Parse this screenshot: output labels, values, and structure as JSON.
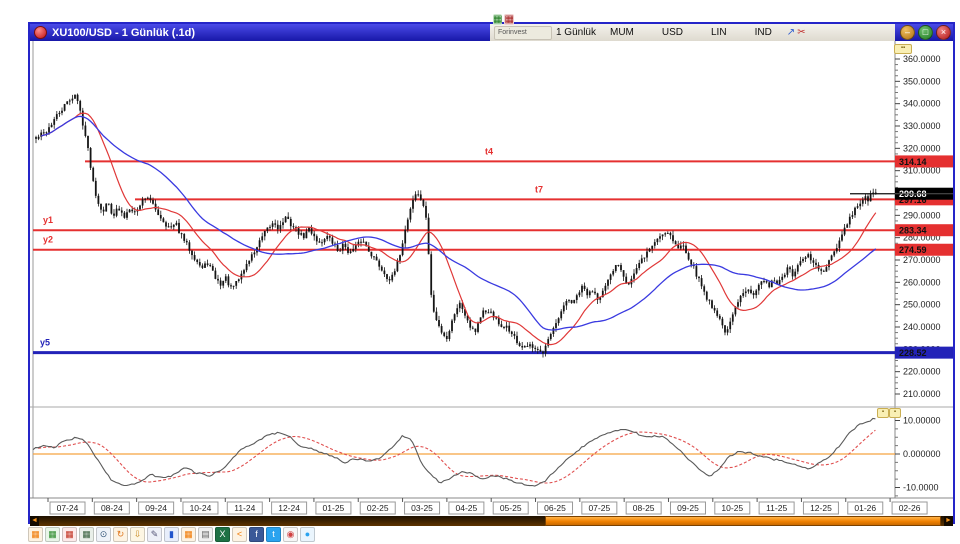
{
  "window": {
    "title": "XU100/USD - 1 Günlük (.1d)",
    "controls": {
      "minimize": "–",
      "restore": "□",
      "close": "×"
    }
  },
  "toolbar": {
    "forinvest_label": "Forinvest",
    "period_label": "1 Günlük",
    "buttons": [
      "MUM",
      "USD",
      "LIN",
      "IND"
    ]
  },
  "chart_data": {
    "type": "candlestick",
    "symbol": "XU100/USD",
    "period": "1 Günlük (.1d)",
    "ylim": [
      210,
      360
    ],
    "y_axis_ticks": [
      "360.0000",
      "350.0000",
      "340.0000",
      "330.0000",
      "320.0000",
      "310.0000",
      "300.0000",
      "290.0000",
      "280.0000",
      "270.0000",
      "260.0000",
      "250.0000",
      "240.0000",
      "230.0000",
      "220.0000",
      "210.0000"
    ],
    "x_axis_months": [
      "07-24",
      "08-24",
      "09-24",
      "10-24",
      "11-24",
      "12-24",
      "01-25",
      "02-25",
      "03-25",
      "04-25",
      "05-25",
      "06-25",
      "07-25",
      "08-25",
      "09-25",
      "10-25",
      "11-25",
      "12-25",
      "01-26",
      "02-26"
    ],
    "candle_color": "#151515",
    "ma_fast_color": "#e03838",
    "ma_slow_color": "#3a3ae0",
    "levels": [
      {
        "name": "t4",
        "label": "t4",
        "price": 314.14,
        "axis_label": "314.14",
        "color": "#e53030",
        "extends_from_x": 55,
        "thick": 2
      },
      {
        "name": "t7",
        "label": "t7",
        "price": 297.16,
        "axis_label": "297.16",
        "color": "#e53030",
        "extends_from_x": 105,
        "thick": 2
      },
      {
        "name": "y1",
        "label": "y1",
        "price": 283.34,
        "axis_label": "283.34",
        "color": "#e53030",
        "extends_from_x": 3,
        "thick": 2
      },
      {
        "name": "y2",
        "label": "y2",
        "price": 274.59,
        "axis_label": "274.59",
        "color": "#e53030",
        "extends_from_x": 3,
        "thick": 2
      },
      {
        "name": "y5",
        "label": "y5",
        "price": 228.52,
        "axis_label": "228.52",
        "color": "#2323b8",
        "extends_from_x": 3,
        "thick": 3
      }
    ],
    "last_price": {
      "value": 299.68,
      "axis_label": "299.68",
      "box_color": "#000000",
      "text_color": "#ffffff"
    },
    "price_path": [
      [
        36,
        324
      ],
      [
        40,
        326
      ],
      [
        45,
        327
      ],
      [
        50,
        330
      ],
      [
        56,
        334
      ],
      [
        63,
        338
      ],
      [
        70,
        342
      ],
      [
        75,
        344
      ],
      [
        79,
        339
      ],
      [
        83,
        331
      ],
      [
        87,
        322
      ],
      [
        90,
        314
      ],
      [
        94,
        303
      ],
      [
        98,
        296
      ],
      [
        103,
        292
      ],
      [
        108,
        296
      ],
      [
        113,
        290
      ],
      [
        118,
        293
      ],
      [
        124,
        289
      ],
      [
        130,
        294
      ],
      [
        136,
        291
      ],
      [
        141,
        296
      ],
      [
        147,
        299
      ],
      [
        152,
        295
      ],
      [
        158,
        291
      ],
      [
        164,
        287
      ],
      [
        170,
        284
      ],
      [
        176,
        286
      ],
      [
        181,
        281
      ],
      [
        188,
        276
      ],
      [
        195,
        271
      ],
      [
        202,
        266
      ],
      [
        208,
        269
      ],
      [
        214,
        263
      ],
      [
        220,
        259
      ],
      [
        226,
        262
      ],
      [
        231,
        257
      ],
      [
        237,
        260
      ],
      [
        243,
        265
      ],
      [
        249,
        270
      ],
      [
        256,
        275
      ],
      [
        262,
        280
      ],
      [
        268,
        284
      ],
      [
        274,
        287
      ],
      [
        279,
        284
      ],
      [
        285,
        289
      ],
      [
        291,
        286
      ],
      [
        297,
        283
      ],
      [
        303,
        280
      ],
      [
        309,
        284
      ],
      [
        314,
        281
      ],
      [
        320,
        277
      ],
      [
        326,
        281
      ],
      [
        332,
        278
      ],
      [
        338,
        274
      ],
      [
        344,
        277
      ],
      [
        350,
        273
      ],
      [
        356,
        276
      ],
      [
        362,
        279
      ],
      [
        368,
        275
      ],
      [
        374,
        271
      ],
      [
        380,
        267
      ],
      [
        386,
        263
      ],
      [
        391,
        261
      ],
      [
        396,
        266
      ],
      [
        400,
        273
      ],
      [
        404,
        281
      ],
      [
        408,
        289
      ],
      [
        412,
        296
      ],
      [
        416,
        300
      ],
      [
        420,
        298
      ],
      [
        424,
        294
      ],
      [
        427,
        285
      ],
      [
        429,
        270
      ],
      [
        431,
        255
      ],
      [
        434,
        246
      ],
      [
        438,
        241
      ],
      [
        443,
        237
      ],
      [
        447,
        235
      ],
      [
        451,
        241
      ],
      [
        455,
        247
      ],
      [
        459,
        251
      ],
      [
        463,
        248
      ],
      [
        467,
        244
      ],
      [
        471,
        240
      ],
      [
        475,
        238
      ],
      [
        479,
        243
      ],
      [
        483,
        247
      ],
      [
        487,
        245
      ],
      [
        491,
        247
      ],
      [
        495,
        244
      ],
      [
        499,
        241
      ],
      [
        503,
        238
      ],
      [
        507,
        241
      ],
      [
        511,
        237
      ],
      [
        515,
        235
      ],
      [
        519,
        232
      ],
      [
        524,
        230
      ],
      [
        529,
        232
      ],
      [
        534,
        229
      ],
      [
        538,
        231
      ],
      [
        543,
        229
      ],
      [
        548,
        234
      ],
      [
        553,
        238
      ],
      [
        558,
        243
      ],
      [
        563,
        248
      ],
      [
        568,
        253
      ],
      [
        573,
        250
      ],
      [
        578,
        255
      ],
      [
        583,
        258
      ],
      [
        588,
        254
      ],
      [
        593,
        257
      ],
      [
        598,
        253
      ],
      [
        603,
        256
      ],
      [
        608,
        260
      ],
      [
        613,
        265
      ],
      [
        618,
        269
      ],
      [
        623,
        264
      ],
      [
        628,
        259
      ],
      [
        633,
        263
      ],
      [
        638,
        267
      ],
      [
        643,
        271
      ],
      [
        648,
        274
      ],
      [
        653,
        277
      ],
      [
        658,
        280
      ],
      [
        663,
        282
      ],
      [
        668,
        283
      ],
      [
        673,
        279
      ],
      [
        678,
        275
      ],
      [
        683,
        277
      ],
      [
        688,
        272
      ],
      [
        693,
        267
      ],
      [
        698,
        262
      ],
      [
        703,
        257
      ],
      [
        708,
        252
      ],
      [
        713,
        249
      ],
      [
        718,
        245
      ],
      [
        723,
        240
      ],
      [
        727,
        237
      ],
      [
        731,
        243
      ],
      [
        735,
        248
      ],
      [
        739,
        252
      ],
      [
        743,
        255
      ],
      [
        748,
        258
      ],
      [
        753,
        255
      ],
      [
        758,
        258
      ],
      [
        763,
        261
      ],
      [
        768,
        258
      ],
      [
        773,
        262
      ],
      [
        778,
        259
      ],
      [
        783,
        263
      ],
      [
        788,
        266
      ],
      [
        793,
        263
      ],
      [
        798,
        267
      ],
      [
        803,
        270
      ],
      [
        808,
        272
      ],
      [
        813,
        269
      ],
      [
        818,
        266
      ],
      [
        823,
        264
      ],
      [
        828,
        268
      ],
      [
        833,
        272
      ],
      [
        838,
        277
      ],
      [
        843,
        282
      ],
      [
        848,
        287
      ],
      [
        853,
        291
      ],
      [
        857,
        294
      ],
      [
        861,
        296
      ],
      [
        865,
        298
      ],
      [
        868,
        296
      ],
      [
        871,
        299
      ],
      [
        874,
        300
      ],
      [
        876,
        299.7
      ]
    ],
    "oscillator": {
      "ylim": [
        -13,
        13
      ],
      "tick_labels": [
        "10.00000",
        "0.000000",
        "-10.0000"
      ],
      "tick_values": [
        10,
        0,
        -10
      ],
      "zero_line_color": "#f5a340",
      "line_color": "#5a5a5a",
      "signal_color": "#e05050",
      "path": [
        [
          33,
          1.5
        ],
        [
          45,
          2.5
        ],
        [
          55,
          2
        ],
        [
          65,
          4
        ],
        [
          78,
          5
        ],
        [
          88,
          3
        ],
        [
          100,
          -3
        ],
        [
          112,
          -8
        ],
        [
          125,
          -9.5
        ],
        [
          140,
          -8.5
        ],
        [
          150,
          -6
        ],
        [
          160,
          -7
        ],
        [
          172,
          -6.5
        ],
        [
          185,
          -4
        ],
        [
          195,
          -5.5
        ],
        [
          210,
          -6.5
        ],
        [
          225,
          -4
        ],
        [
          240,
          1
        ],
        [
          255,
          3.5
        ],
        [
          268,
          5.5
        ],
        [
          280,
          6.5
        ],
        [
          290,
          5
        ],
        [
          300,
          2
        ],
        [
          312,
          1.5
        ],
        [
          322,
          0.5
        ],
        [
          335,
          -1
        ],
        [
          345,
          -2.5
        ],
        [
          355,
          -1.5
        ],
        [
          368,
          -2
        ],
        [
          380,
          -1.5
        ],
        [
          392,
          2
        ],
        [
          403,
          5.5
        ],
        [
          412,
          4
        ],
        [
          420,
          -2
        ],
        [
          430,
          -6
        ],
        [
          440,
          -8.5
        ],
        [
          452,
          -7
        ],
        [
          462,
          -5
        ],
        [
          472,
          -6
        ],
        [
          482,
          -7.5
        ],
        [
          492,
          -6.5
        ],
        [
          502,
          -7
        ],
        [
          512,
          -8
        ],
        [
          522,
          -9
        ],
        [
          535,
          -9.5
        ],
        [
          545,
          -8
        ],
        [
          558,
          -4
        ],
        [
          570,
          -1
        ],
        [
          582,
          2
        ],
        [
          595,
          4.5
        ],
        [
          605,
          6
        ],
        [
          615,
          7
        ],
        [
          625,
          7.5
        ],
        [
          635,
          6.5
        ],
        [
          645,
          5
        ],
        [
          655,
          5.5
        ],
        [
          665,
          5
        ],
        [
          672,
          3
        ],
        [
          680,
          1
        ],
        [
          690,
          -2
        ],
        [
          700,
          -5
        ],
        [
          710,
          -6.5
        ],
        [
          718,
          -5
        ],
        [
          728,
          -1
        ],
        [
          738,
          0.5
        ],
        [
          748,
          0.5
        ],
        [
          760,
          -0.5
        ],
        [
          772,
          -1.5
        ],
        [
          782,
          -2
        ],
        [
          790,
          -3
        ],
        [
          800,
          -3.5
        ],
        [
          810,
          -4.5
        ],
        [
          818,
          -3
        ],
        [
          828,
          -1
        ],
        [
          838,
          2
        ],
        [
          848,
          6
        ],
        [
          858,
          8.5
        ],
        [
          866,
          9.5
        ],
        [
          872,
          10.3
        ],
        [
          876,
          10.5
        ]
      ]
    }
  },
  "top_toolbar_icons": [
    {
      "name": "chart-green-icon",
      "glyph": "▦",
      "bg": "#cfe8cf",
      "fg": "#1e7a1e"
    },
    {
      "name": "chart-red-icon",
      "glyph": "▦",
      "bg": "#f0d2d2",
      "fg": "#a52222"
    },
    {
      "name": "window-icon",
      "glyph": "◳",
      "bg": "transparent",
      "fg": "#666"
    },
    {
      "name": "image-icon",
      "glyph": "▣",
      "bg": "#d9e4f5",
      "fg": "#2a4d9e"
    },
    {
      "name": "image-landscape-icon",
      "glyph": "▤",
      "bg": "#d9efd9",
      "fg": "#2a7a4d"
    },
    {
      "name": "pencil-icon",
      "glyph": "✎",
      "bg": "transparent",
      "fg": "#1e8a1e"
    },
    {
      "name": "compass-icon",
      "glyph": "◈",
      "bg": "transparent",
      "fg": "#2a5ad0"
    },
    {
      "name": "wave-icon",
      "glyph": "≈",
      "bg": "transparent",
      "fg": "#555"
    }
  ],
  "top_toolbar_right_icons": [
    {
      "name": "link-arrow-icon",
      "glyph": "↗",
      "bg": "transparent",
      "fg": "#2a5ad0"
    },
    {
      "name": "scissors-icon",
      "glyph": "✂",
      "bg": "transparent",
      "fg": "#c03030"
    }
  ],
  "badges": {
    "axis_badge": "▪▪",
    "indicator_badge_1": "▪",
    "indicator_badge_2": "▪"
  },
  "scrollbar": {
    "left_arrow": "◄",
    "right_arrow": "►"
  },
  "bottom_icons": [
    {
      "name": "new-chart-icon",
      "glyph": "▦",
      "bg": "#fdf3e3",
      "fg": "#f07800"
    },
    {
      "name": "chart-green-icon",
      "glyph": "▦",
      "bg": "#e9f5e9",
      "fg": "#2a8a2a"
    },
    {
      "name": "chart-red-icon",
      "glyph": "▦",
      "bg": "#fceaea",
      "fg": "#c03020"
    },
    {
      "name": "chart-dark-icon",
      "glyph": "▦",
      "bg": "#e9efe9",
      "fg": "#355e3b"
    },
    {
      "name": "zoom-icon",
      "glyph": "⊙",
      "bg": "#eef2f8",
      "fg": "#335577"
    },
    {
      "name": "refresh-icon",
      "glyph": "↻",
      "bg": "#fdf3e3",
      "fg": "#e07820"
    },
    {
      "name": "export-icon",
      "glyph": "⇩",
      "bg": "#fdf6e3",
      "fg": "#c8881a"
    },
    {
      "name": "edit-page-icon",
      "glyph": "✎",
      "bg": "#eef0f8",
      "fg": "#555577"
    },
    {
      "name": "database-icon",
      "glyph": "▮",
      "bg": "#e8eefb",
      "fg": "#2255cc"
    },
    {
      "name": "chart-orange-icon",
      "glyph": "▦",
      "bg": "#fdf3e3",
      "fg": "#f07800"
    },
    {
      "name": "print-icon",
      "glyph": "▤",
      "bg": "#f0f0f0",
      "fg": "#666666"
    },
    {
      "name": "excel-icon",
      "glyph": "X",
      "bg": "#1e7145",
      "fg": "#ffffff"
    },
    {
      "name": "share-icon",
      "glyph": "<",
      "bg": "#fdf3e3",
      "fg": "#f07800"
    },
    {
      "name": "facebook-icon",
      "glyph": "f",
      "bg": "#3b5998",
      "fg": "#ffffff"
    },
    {
      "name": "twitter-icon",
      "glyph": "t",
      "bg": "#2aa3ef",
      "fg": "#ffffff"
    },
    {
      "name": "pin-icon",
      "glyph": "◉",
      "bg": "#f6f6f6",
      "fg": "#d04040"
    },
    {
      "name": "twitter-circle-icon",
      "glyph": "●",
      "bg": "#eaf5fd",
      "fg": "#2aa3ef"
    }
  ]
}
